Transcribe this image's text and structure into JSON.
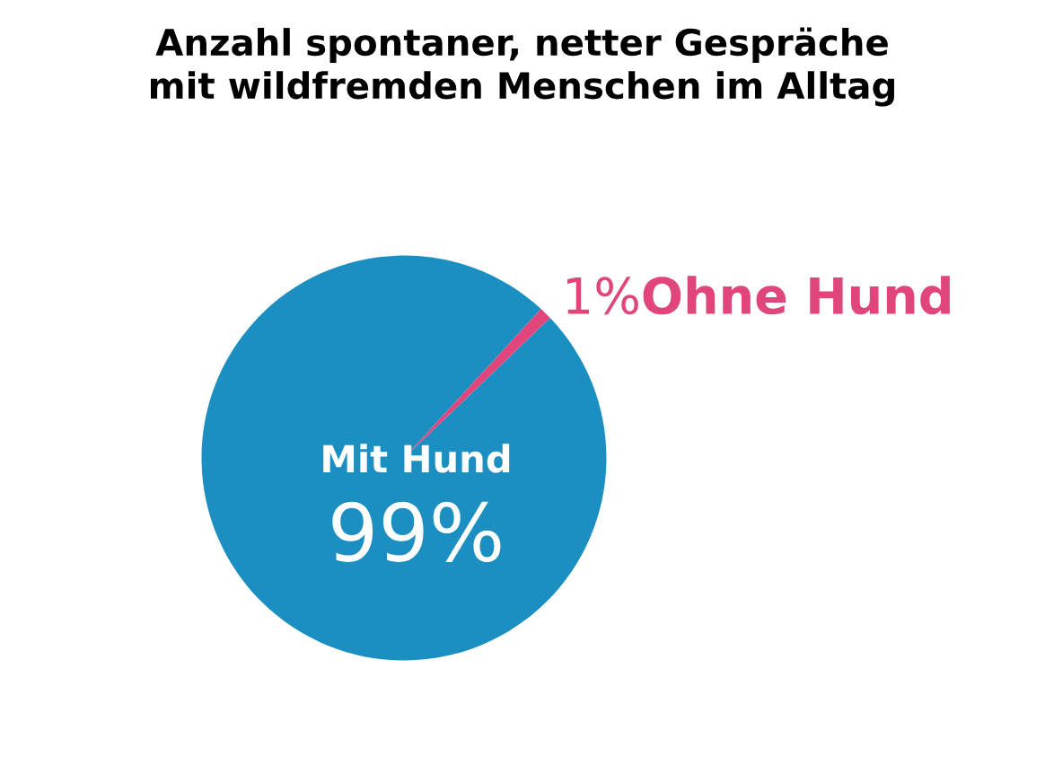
{
  "chart_data": {
    "type": "pie",
    "title": "Anzahl spontaner, netter Gespräche\nmit wildfremden Menschen im Alltag",
    "categories": [
      "Mit Hund",
      "Ohne Hund"
    ],
    "values": [
      99,
      1
    ],
    "value_labels": [
      "99%",
      "1%"
    ],
    "colors": [
      "#1b8fc2",
      "#e0457b"
    ],
    "legend": false
  }
}
